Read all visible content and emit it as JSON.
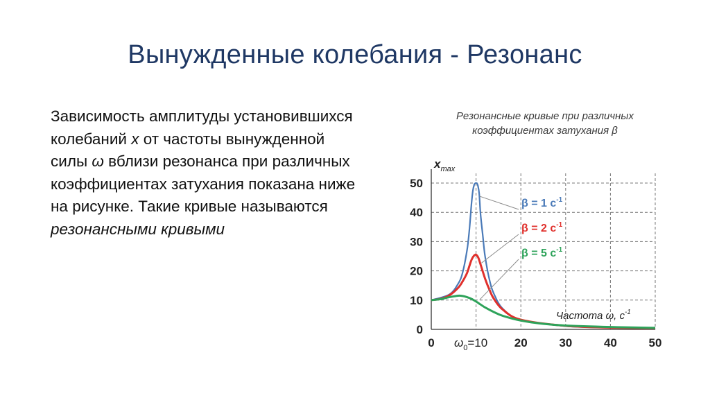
{
  "slide": {
    "title": "Вынужденные колебания - Резонанс"
  },
  "text": {
    "p1": "Зависимость амплитуды установившихся колебаний ",
    "var_x": "x",
    "p2": " от частоты вынужденной силы ",
    "var_omega": "ω",
    "p3": " вблизи резонанса при различных коэффициентах затухания  показана ниже на рисунке. Такие кривые называются ",
    "italic_term": "резонансными кривыми"
  },
  "chart_data": {
    "type": "line",
    "title_line1": "Резонансные кривые при различных",
    "title_line2": "коэффициентах затухания β",
    "ylabel": "x",
    "ylabel_sub": "max",
    "xlabel": "Частота ω, с",
    "xlabel_sup": "-1",
    "xlim": [
      0,
      50
    ],
    "ylim": [
      0,
      50
    ],
    "xticks": [
      "0",
      "10",
      "20",
      "30",
      "40",
      "50"
    ],
    "yticks": [
      "0",
      "10",
      "20",
      "30",
      "40",
      "50"
    ],
    "omega0_label": "ω",
    "omega0_sub": "0",
    "omega0_eq": "=10",
    "grid": true,
    "resonance_x": 10,
    "series": [
      {
        "name": "β = 1 с",
        "sup": "-1",
        "color": "#4a7ab8",
        "x": [
          0,
          4,
          6,
          7,
          8,
          8.5,
          9,
          9.3,
          9.6,
          9.8,
          10,
          10.2,
          10.4,
          10.7,
          11,
          11.5,
          12,
          13,
          14,
          16,
          20,
          30,
          40,
          50
        ],
        "values": [
          10,
          11.9,
          15.6,
          19.4,
          27.2,
          33.9,
          43.3,
          47.5,
          49.5,
          49.9,
          50,
          49.9,
          49.2,
          46.4,
          39.4,
          32.1,
          25.1,
          16.9,
          12.1,
          7.0,
          3.3,
          1.1,
          0.6,
          0.4
        ]
      },
      {
        "name": "β = 2 с",
        "sup": "-1",
        "color": "#e0302c",
        "x": [
          0,
          2,
          4,
          6,
          7,
          8,
          8.5,
          9,
          9.5,
          10,
          10.5,
          11,
          12,
          13,
          14,
          16,
          20,
          30,
          40,
          50
        ],
        "values": [
          10,
          10.4,
          11.6,
          14.2,
          16.4,
          19.3,
          21.6,
          23.8,
          25.1,
          25.5,
          24.5,
          22.2,
          17.4,
          13.5,
          10.4,
          6.7,
          3.3,
          1.2,
          0.6,
          0.4
        ]
      },
      {
        "name": "β = 5 с",
        "sup": "-1",
        "color": "#2ea35a",
        "x": [
          0,
          2,
          4,
          6,
          7,
          8,
          9,
          10,
          11,
          12,
          14,
          16,
          20,
          25,
          30,
          40,
          50
        ],
        "values": [
          10,
          10.3,
          11.0,
          11.5,
          11.4,
          11.0,
          10.4,
          9.5,
          8.5,
          7.5,
          5.9,
          4.6,
          3.0,
          1.9,
          1.3,
          0.8,
          0.5
        ]
      }
    ],
    "legend_placement": "right, with leader lines to curves"
  }
}
